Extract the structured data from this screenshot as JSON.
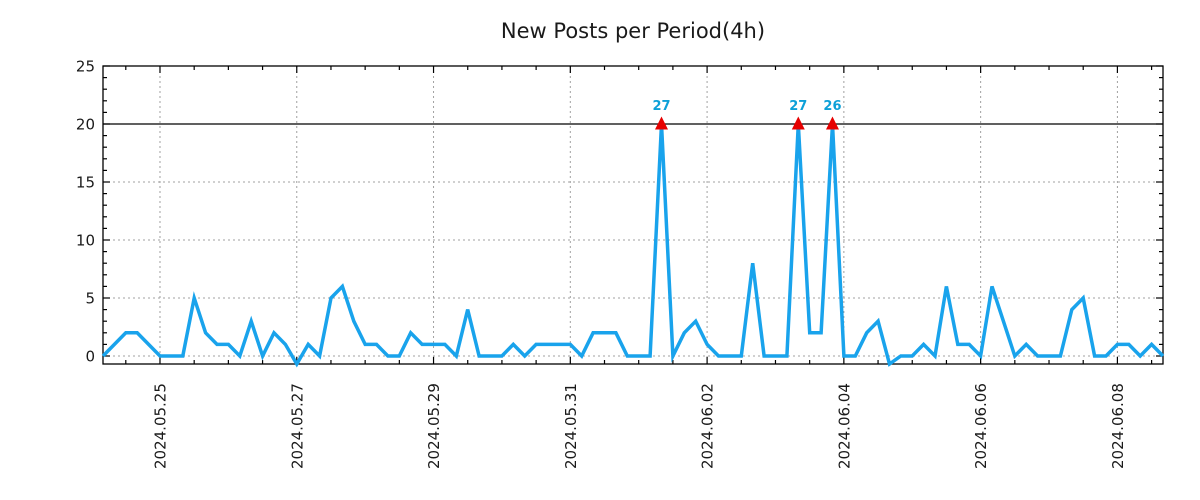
{
  "title": "New Posts per Period(4h)",
  "chart_data": {
    "type": "line",
    "title": "New Posts per Period(4h)",
    "period": "4h",
    "x_start": "2024-05-24 04:00",
    "x_step_hours": 4,
    "values": [
      0,
      1,
      2,
      2,
      1,
      0,
      0,
      0,
      5,
      2,
      1,
      1,
      0,
      3,
      0,
      2,
      1,
      -1,
      1,
      0,
      5,
      6,
      3,
      1,
      1,
      0,
      0,
      2,
      1,
      1,
      1,
      0,
      4,
      0,
      0,
      0,
      1,
      0,
      1,
      1,
      1,
      1,
      0,
      2,
      2,
      2,
      0,
      0,
      0,
      27,
      0,
      2,
      3,
      1,
      0,
      0,
      0,
      8,
      0,
      0,
      0,
      27,
      2,
      2,
      26,
      0,
      0,
      2,
      3,
      -1,
      0,
      0,
      1,
      0,
      6,
      1,
      1,
      0,
      6,
      3,
      0,
      1,
      0,
      0,
      0,
      4,
      5,
      0,
      0,
      1,
      1,
      0,
      1,
      0
    ],
    "display_cap": 20,
    "threshold_line_y": 20,
    "annotations": [
      {
        "index": 49,
        "label": "27"
      },
      {
        "index": 61,
        "label": "27"
      },
      {
        "index": 64,
        "label": "26"
      }
    ],
    "x_tick_labels": [
      "2024.05.25",
      "2024.05.27",
      "2024.05.29",
      "2024.05.31",
      "2024.06.02",
      "2024.06.04",
      "2024.06.06",
      "2024.06.08"
    ],
    "x_tick_indices": [
      5,
      17,
      29,
      41,
      53,
      65,
      77,
      89
    ],
    "y_tick_labels": [
      "0",
      "5",
      "10",
      "15",
      "20",
      "25"
    ],
    "y_ticks": [
      0,
      5,
      10,
      15,
      20,
      25
    ],
    "ylim": [
      -0.7,
      25
    ],
    "grid": "dotted",
    "legend": "none",
    "colors": {
      "line": "#19a3ec",
      "annotation_text": "#0da0d8",
      "peak_marker": "#e60000",
      "grid": "#a0a0a0",
      "axis": "#000000",
      "threshold_line": "#000000",
      "text": "#1a1a1a",
      "background": "#ffffff"
    }
  }
}
